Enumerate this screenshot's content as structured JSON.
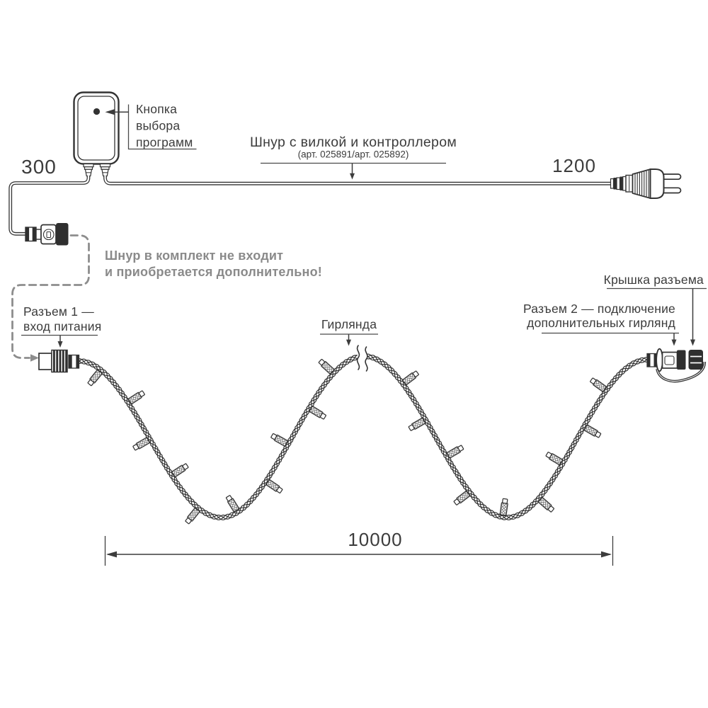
{
  "labels": {
    "program_button_line1": "Кнопка",
    "program_button_line2": "выбора",
    "program_button_line3": "программ",
    "cord_length_left": "300",
    "cord_length_right": "1200",
    "cord_title": "Шнур с вилкой и контроллером",
    "cord_subtitle": "(арт. 025891/арт. 025892)",
    "note_line1": "Шнур в комплект не входит",
    "note_line2": "и приобретается дополнительно!",
    "connector1_line1": "Разъем 1 —",
    "connector1_line2": "вход питания",
    "garland": "Гирлянда",
    "connector2_line1": "Разъем 2 — подключение",
    "connector2_line2": "дополнительных гирлянд",
    "cap_label": "Крышка разъема",
    "garland_length": "10000"
  },
  "colors": {
    "line": "#333333",
    "label_text": "#3c3c3c",
    "gray": "#8d8d8d",
    "gray_text": "#8a8a8a",
    "background": "#ffffff"
  }
}
